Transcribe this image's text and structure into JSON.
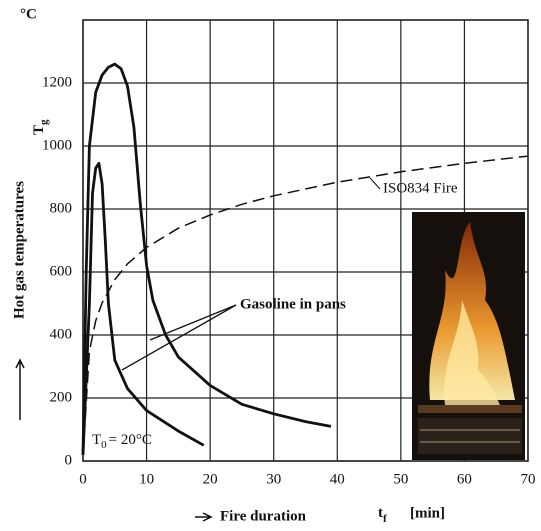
{
  "chart_data": {
    "type": "line",
    "y_unit": "°C",
    "y_label": "Hot gas temperatures",
    "y_symbol": "T",
    "y_symbol_sub": "g",
    "x_label": "Fire duration",
    "x_symbol": "t",
    "x_symbol_sub": "f",
    "x_unit": "[min]",
    "annotations": {
      "gasoline": "Gasoline in pans",
      "t0_symbol": "T",
      "t0_sub": "0",
      "t0_text": "= 20°C"
    },
    "xlim": [
      0,
      70
    ],
    "xticks": [
      0,
      10,
      20,
      30,
      40,
      50,
      60,
      70
    ],
    "ylim": [
      0,
      1400
    ],
    "yticks": [
      0,
      200,
      400,
      600,
      800,
      1000,
      1200
    ],
    "grid": true,
    "series": [
      {
        "name": "ISO834 Fire",
        "color": "#111111",
        "dashed": true,
        "x": [
          0,
          1,
          2,
          3,
          5,
          7,
          10,
          15,
          20,
          25,
          30,
          40,
          50,
          60,
          70
        ],
        "values": [
          20,
          349,
          445,
          502,
          576,
          626,
          678,
          739,
          781,
          815,
          842,
          885,
          918,
          945,
          968
        ]
      },
      {
        "color": "#111111",
        "dashed": false,
        "x": [
          0,
          0.5,
          1,
          2,
          3,
          4,
          5,
          6,
          7,
          8,
          9,
          10,
          11,
          13,
          15,
          20,
          25,
          30,
          35,
          39
        ],
        "values": [
          20,
          600,
          1000,
          1170,
          1225,
          1250,
          1260,
          1245,
          1190,
          1060,
          820,
          620,
          510,
          400,
          330,
          240,
          180,
          150,
          125,
          110
        ]
      },
      {
        "color": "#111111",
        "dashed": false,
        "x": [
          0,
          1,
          1.5,
          2,
          2.5,
          3,
          3.5,
          4,
          5,
          7,
          10,
          15,
          19
        ],
        "values": [
          20,
          500,
          850,
          930,
          945,
          880,
          700,
          500,
          320,
          230,
          160,
          95,
          50
        ]
      }
    ]
  }
}
